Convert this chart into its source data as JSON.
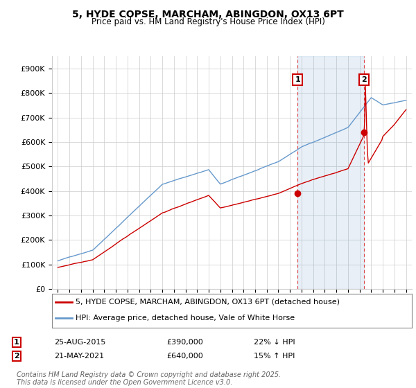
{
  "title": "5, HYDE COPSE, MARCHAM, ABINGDON, OX13 6PT",
  "subtitle": "Price paid vs. HM Land Registry's House Price Index (HPI)",
  "legend_line1": "5, HYDE COPSE, MARCHAM, ABINGDON, OX13 6PT (detached house)",
  "legend_line2": "HPI: Average price, detached house, Vale of White Horse",
  "annotation1_date": "25-AUG-2015",
  "annotation1_price": "£390,000",
  "annotation1_hpi": "22% ↓ HPI",
  "annotation1_year": 2015.65,
  "annotation1_value": 390000,
  "annotation2_date": "21-MAY-2021",
  "annotation2_price": "£640,000",
  "annotation2_hpi": "15% ↑ HPI",
  "annotation2_year": 2021.38,
  "annotation2_value": 640000,
  "footer": "Contains HM Land Registry data © Crown copyright and database right 2025.\nThis data is licensed under the Open Government Licence v3.0.",
  "ylim": [
    0,
    950000
  ],
  "yticks": [
    0,
    100000,
    200000,
    300000,
    400000,
    500000,
    600000,
    700000,
    800000,
    900000
  ],
  "ytick_labels": [
    "£0",
    "£100K",
    "£200K",
    "£300K",
    "£400K",
    "£500K",
    "£600K",
    "£700K",
    "£800K",
    "£900K"
  ],
  "red_color": "#cc0000",
  "blue_color": "#6699cc",
  "blue_fill": "#ddeeff",
  "vline_color": "#dd4444",
  "background_color": "#ffffff",
  "grid_color": "#cccccc",
  "title_fontsize": 10,
  "subtitle_fontsize": 8.5,
  "axis_fontsize": 8,
  "legend_fontsize": 8,
  "footer_fontsize": 7
}
